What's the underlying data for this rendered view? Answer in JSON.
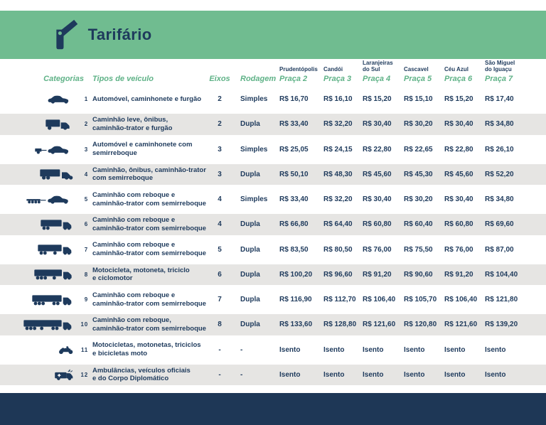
{
  "header": {
    "title": "Tarifário",
    "icon": "toll-gate-icon"
  },
  "colors": {
    "green": "#70BC90",
    "header_label_green": "#5FB287",
    "navy": "#1E3A5C",
    "footer_navy": "#1E3756",
    "row_alt": "#E6E5E3"
  },
  "table": {
    "col_headers": {
      "categorias": "Categorias",
      "tipos": "Tipos de veículo",
      "eixos": "Eixos",
      "rodagem": "Rodagem"
    },
    "plazas": [
      {
        "city": "Prudentópolis",
        "plaza": "Praça 2"
      },
      {
        "city": "Candói",
        "plaza": "Praça 3"
      },
      {
        "city": "Laranjeiras\ndo Sul",
        "plaza": "Praça 4"
      },
      {
        "city": "Cascavel",
        "plaza": "Praça 5"
      },
      {
        "city": "Céu Azul",
        "plaza": "Praça 6"
      },
      {
        "city": "São Miguel\ndo Iguaçu",
        "plaza": "Praça 7"
      }
    ],
    "rows": [
      {
        "num": "1",
        "icon": "car-icon",
        "tipo": "Automóvel, caminhonete e furgão",
        "eixos": "2",
        "rodagem": "Simples",
        "prices": [
          "R$ 16,70",
          "R$ 16,10",
          "R$ 15,20",
          "R$ 15,10",
          "R$ 15,20",
          "R$ 17,40"
        ]
      },
      {
        "num": "2",
        "icon": "light-truck-icon",
        "tipo": "Caminhão leve, ônibus,\ncaminhão-trator e furgão",
        "eixos": "2",
        "rodagem": "Dupla",
        "prices": [
          "R$ 33,40",
          "R$ 32,20",
          "R$ 30,40",
          "R$ 30,20",
          "R$ 30,40",
          "R$ 34,80"
        ]
      },
      {
        "num": "3",
        "icon": "car-trailer-icon",
        "tipo": "Automóvel e caminhonete com\nsemirreboque",
        "eixos": "3",
        "rodagem": "Simples",
        "prices": [
          "R$ 25,05",
          "R$ 24,15",
          "R$ 22,80",
          "R$ 22,65",
          "R$ 22,80",
          "R$ 26,10"
        ]
      },
      {
        "num": "4",
        "icon": "truck-semitrailer-icon",
        "tipo": "Caminhão, ônibus, caminhão-trator\ncom semirreboque",
        "eixos": "3",
        "rodagem": "Dupla",
        "prices": [
          "R$ 50,10",
          "R$ 48,30",
          "R$ 45,60",
          "R$ 45,30",
          "R$ 45,60",
          "R$ 52,20"
        ]
      },
      {
        "num": "5",
        "icon": "car-long-trailer-icon",
        "tipo": "Caminhão com reboque e\ncaminhão-trator com semirreboque",
        "eixos": "4",
        "rodagem": "Simples",
        "prices": [
          "R$ 33,40",
          "R$ 32,20",
          "R$ 30,40",
          "R$ 30,20",
          "R$ 30,40",
          "R$ 34,80"
        ]
      },
      {
        "num": "6",
        "icon": "semi-truck-4-icon",
        "tipo": "Caminhão com reboque e\ncaminhão-trator com semirreboque",
        "eixos": "4",
        "rodagem": "Dupla",
        "prices": [
          "R$ 66,80",
          "R$ 64,40",
          "R$ 60,80",
          "R$ 60,40",
          "R$ 60,80",
          "R$ 69,60"
        ]
      },
      {
        "num": "7",
        "icon": "semi-truck-5-icon",
        "tipo": "Caminhão com reboque e\ncaminhão-trator com semirreboque",
        "eixos": "5",
        "rodagem": "Dupla",
        "prices": [
          "R$ 83,50",
          "R$ 80,50",
          "R$ 76,00",
          "R$ 75,50",
          "R$ 76,00",
          "R$ 87,00"
        ]
      },
      {
        "num": "8",
        "icon": "semi-truck-6-icon",
        "tipo": "Motocicleta, motoneta, triciclo\ne ciclomotor",
        "eixos": "6",
        "rodagem": "Dupla",
        "prices": [
          "R$ 100,20",
          "R$ 96,60",
          "R$ 91,20",
          "R$ 90,60",
          "R$ 91,20",
          "R$ 104,40"
        ]
      },
      {
        "num": "9",
        "icon": "semi-truck-7-icon",
        "tipo": "Caminhão com reboque e\ncaminhão-trator com semirreboque",
        "eixos": "7",
        "rodagem": "Dupla",
        "prices": [
          "R$ 116,90",
          "R$ 112,70",
          "R$ 106,40",
          "R$ 105,70",
          "R$ 106,40",
          "R$ 121,80"
        ]
      },
      {
        "num": "10",
        "icon": "semi-truck-8-icon",
        "tipo": "Caminhão com reboque,\ncaminhão-trator com semirreboque",
        "eixos": "8",
        "rodagem": "Dupla",
        "prices": [
          "R$ 133,60",
          "R$ 128,80",
          "R$ 121,60",
          "R$ 120,80",
          "R$ 121,60",
          "R$ 139,20"
        ]
      },
      {
        "num": "11",
        "icon": "motorcycle-icon",
        "tipo": "Motocicletas, motonetas, triciclos\ne bicicletas moto",
        "eixos": "-",
        "rodagem": "-",
        "prices": [
          "Isento",
          "Isento",
          "Isento",
          "Isento",
          "Isento",
          "Isento"
        ]
      },
      {
        "num": "12",
        "icon": "ambulance-icon",
        "tipo": "Ambulâncias, veículos oficiais\ne do Corpo Diplomático",
        "eixos": "-",
        "rodagem": "-",
        "prices": [
          "Isento",
          "Isento",
          "Isento",
          "Isento",
          "Isento",
          "Isento"
        ]
      }
    ]
  }
}
